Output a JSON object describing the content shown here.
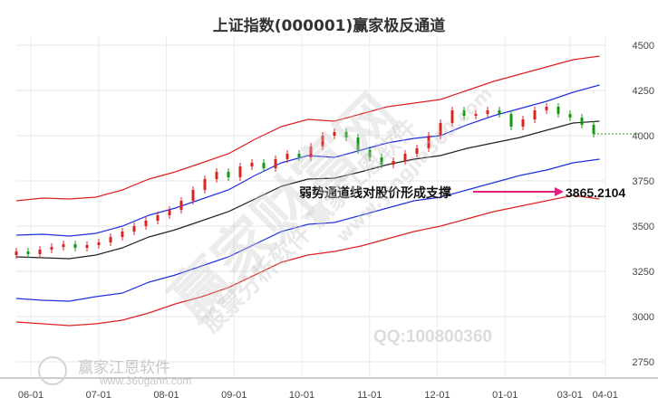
{
  "chart_data": {
    "type": "line",
    "title": "上证指数(000001)赢家极反通道",
    "x_ticks": [
      "06-01",
      "07-01",
      "08-01",
      "09-01",
      "10-01",
      "11-01",
      "12-01",
      "01-01",
      "03-01",
      "04-01"
    ],
    "y_ticks": [
      4500,
      4250,
      4000,
      3750,
      3500,
      3250,
      3000,
      2750
    ],
    "ylim": [
      2700,
      4550
    ],
    "grid": true,
    "colors": {
      "upper": "#e02020",
      "mid": "#2030e0",
      "base": "#222222",
      "up_candle": "#dd2222",
      "down_candle": "#119911",
      "arrow": "#e0207a"
    },
    "series": [
      {
        "key": "upper_outer",
        "color": "#e02020",
        "values": [
          3640,
          3655,
          3650,
          3660,
          3700,
          3760,
          3800,
          3850,
          3900,
          3980,
          4050,
          4090,
          4080,
          4120,
          4160,
          4180,
          4200,
          4250,
          4300,
          4340,
          4380,
          4420,
          4440
        ]
      },
      {
        "key": "upper_inner",
        "color": "#2030e0",
        "values": [
          3450,
          3455,
          3445,
          3460,
          3500,
          3560,
          3600,
          3650,
          3700,
          3780,
          3850,
          3890,
          3880,
          3920,
          3960,
          3985,
          4000,
          4060,
          4110,
          4150,
          4190,
          4240,
          4280
        ]
      },
      {
        "key": "base",
        "color": "#222222",
        "values": [
          3330,
          3325,
          3320,
          3340,
          3380,
          3440,
          3480,
          3530,
          3580,
          3650,
          3720,
          3760,
          3765,
          3800,
          3840,
          3870,
          3890,
          3930,
          3960,
          3990,
          4030,
          4070,
          4080
        ]
      },
      {
        "key": "lower_inner",
        "color": "#2030e0",
        "values": [
          3100,
          3090,
          3085,
          3110,
          3130,
          3190,
          3230,
          3280,
          3330,
          3400,
          3470,
          3510,
          3520,
          3560,
          3600,
          3640,
          3660,
          3700,
          3740,
          3780,
          3810,
          3850,
          3870
        ]
      },
      {
        "key": "lower_outer",
        "color": "#e02020",
        "values": [
          2970,
          2960,
          2950,
          2960,
          2980,
          3020,
          3070,
          3110,
          3160,
          3230,
          3300,
          3340,
          3360,
          3390,
          3430,
          3470,
          3500,
          3540,
          3580,
          3610,
          3640,
          3670,
          3650
        ]
      }
    ],
    "series_x": [
      0,
      4.5,
      9,
      13.5,
      18,
      22.5,
      27,
      31.5,
      36,
      40.5,
      45,
      49.5,
      54,
      58.5,
      63,
      67.5,
      72,
      76.5,
      81,
      85.5,
      90,
      94.5,
      99
    ],
    "candles": [
      {
        "x": 0,
        "o": 3340,
        "c": 3360
      },
      {
        "x": 2,
        "o": 3360,
        "c": 3345
      },
      {
        "x": 4,
        "o": 3345,
        "c": 3370
      },
      {
        "x": 6,
        "o": 3370,
        "c": 3385
      },
      {
        "x": 8,
        "o": 3385,
        "c": 3400
      },
      {
        "x": 10,
        "o": 3400,
        "c": 3380
      },
      {
        "x": 12,
        "o": 3380,
        "c": 3395
      },
      {
        "x": 14,
        "o": 3395,
        "c": 3410
      },
      {
        "x": 16,
        "o": 3410,
        "c": 3440
      },
      {
        "x": 18,
        "o": 3440,
        "c": 3470
      },
      {
        "x": 20,
        "o": 3470,
        "c": 3500
      },
      {
        "x": 22,
        "o": 3500,
        "c": 3530
      },
      {
        "x": 24,
        "o": 3530,
        "c": 3560
      },
      {
        "x": 26,
        "o": 3560,
        "c": 3590
      },
      {
        "x": 28,
        "o": 3590,
        "c": 3640
      },
      {
        "x": 30,
        "o": 3640,
        "c": 3700
      },
      {
        "x": 32,
        "o": 3700,
        "c": 3760
      },
      {
        "x": 34,
        "o": 3760,
        "c": 3800
      },
      {
        "x": 36,
        "o": 3800,
        "c": 3770
      },
      {
        "x": 38,
        "o": 3770,
        "c": 3830
      },
      {
        "x": 40,
        "o": 3830,
        "c": 3850
      },
      {
        "x": 42,
        "o": 3850,
        "c": 3820
      },
      {
        "x": 44,
        "o": 3820,
        "c": 3870
      },
      {
        "x": 46,
        "o": 3870,
        "c": 3900
      },
      {
        "x": 48,
        "o": 3900,
        "c": 3880
      },
      {
        "x": 50,
        "o": 3880,
        "c": 3940
      },
      {
        "x": 52,
        "o": 3940,
        "c": 4000
      },
      {
        "x": 54,
        "o": 4000,
        "c": 4020
      },
      {
        "x": 56,
        "o": 4020,
        "c": 3990
      },
      {
        "x": 58,
        "o": 3990,
        "c": 3920
      },
      {
        "x": 60,
        "o": 3920,
        "c": 3880
      },
      {
        "x": 62,
        "o": 3880,
        "c": 3840
      },
      {
        "x": 64,
        "o": 3840,
        "c": 3860
      },
      {
        "x": 66,
        "o": 3860,
        "c": 3900
      },
      {
        "x": 68,
        "o": 3900,
        "c": 3930
      },
      {
        "x": 70,
        "o": 3930,
        "c": 4000
      },
      {
        "x": 72,
        "o": 4000,
        "c": 4070
      },
      {
        "x": 74,
        "o": 4070,
        "c": 4140
      },
      {
        "x": 76,
        "o": 4140,
        "c": 4110
      },
      {
        "x": 78,
        "o": 4110,
        "c": 4120
      },
      {
        "x": 80,
        "o": 4120,
        "c": 4140
      },
      {
        "x": 82,
        "o": 4140,
        "c": 4120
      },
      {
        "x": 84,
        "o": 4120,
        "c": 4050
      },
      {
        "x": 86,
        "o": 4050,
        "c": 4090
      },
      {
        "x": 88,
        "o": 4090,
        "c": 4140
      },
      {
        "x": 90,
        "o": 4140,
        "c": 4160
      },
      {
        "x": 92,
        "o": 4160,
        "c": 4120
      },
      {
        "x": 94,
        "o": 4120,
        "c": 4100
      },
      {
        "x": 96,
        "o": 4100,
        "c": 4060
      },
      {
        "x": 98,
        "o": 4060,
        "c": 4010
      }
    ],
    "annotation": {
      "text": "弱势通道线对股价形成支撑",
      "value_label": "3865.2104",
      "value": 3865.2104
    },
    "current_level": 4010
  },
  "watermarks": {
    "brand": "赢家江恩软件",
    "url": "www.360gann.com",
    "qq": "QQ:100800360",
    "big": "赢家财富网",
    "mid": "股票分析软件 赢家江恩软件",
    "small": "www.yingjia360.com"
  }
}
